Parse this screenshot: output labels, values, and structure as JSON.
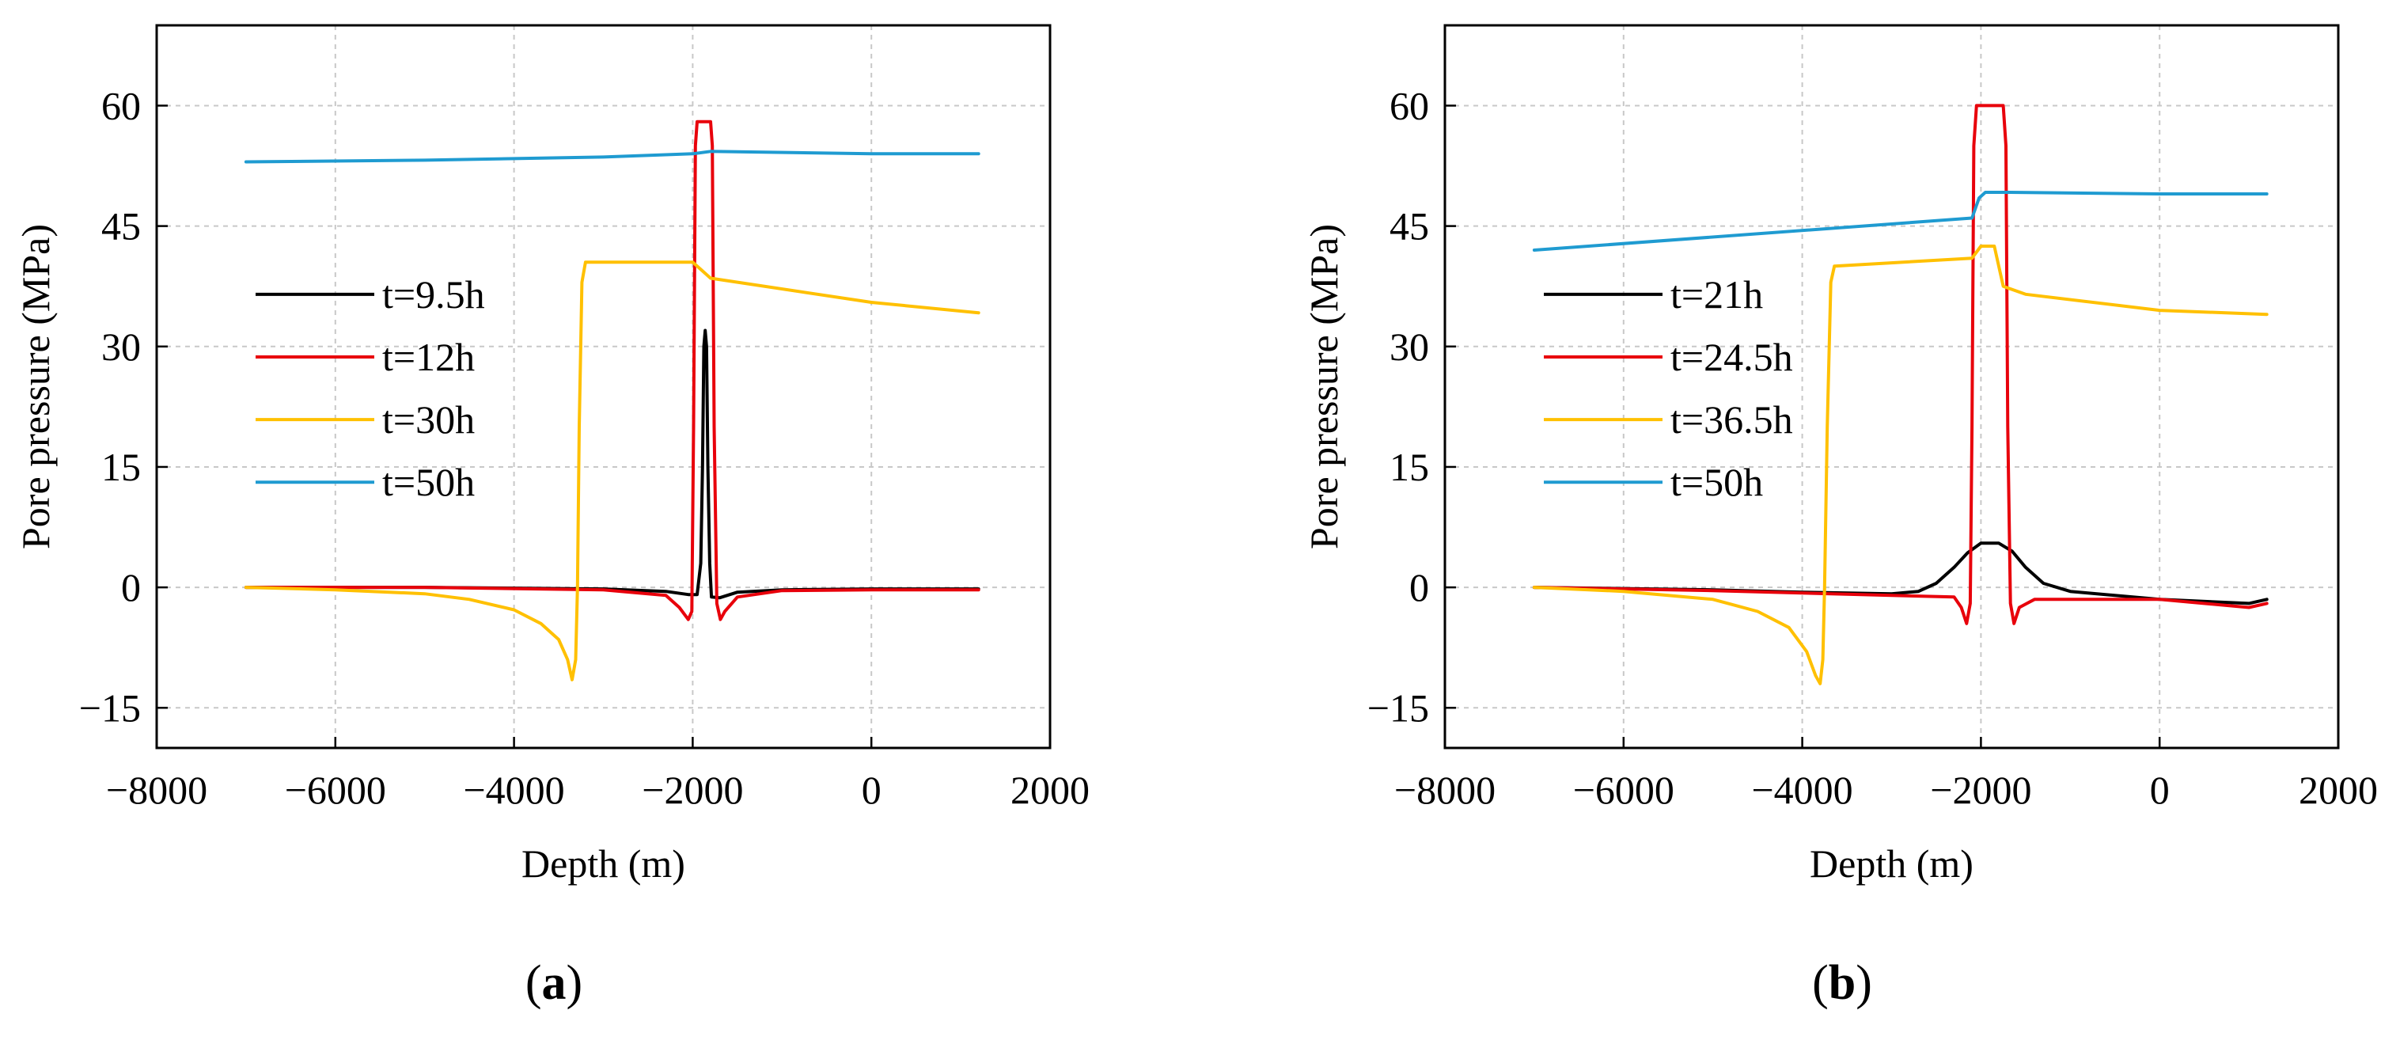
{
  "chart_data": [
    {
      "type": "line",
      "panel": "(a)",
      "panel_letter": "a",
      "xlabel": "Depth (m)",
      "ylabel": "Pore pressure (MPa)",
      "xlim": [
        -8000,
        2000
      ],
      "ylim": [
        -20,
        70
      ],
      "xticks": [
        -8000,
        -6000,
        -4000,
        -2000,
        0,
        2000
      ],
      "yticks": [
        -15,
        0,
        15,
        30,
        45,
        60
      ],
      "grid": true,
      "legend_position": "center-left",
      "series": [
        {
          "name": "t=9.5h",
          "color": "#000000",
          "points": [
            [
              -7000,
              0
            ],
            [
              -5000,
              0
            ],
            [
              -3000,
              -0.2
            ],
            [
              -2300,
              -0.5
            ],
            [
              -2050,
              -0.9
            ],
            [
              -1950,
              -0.9
            ],
            [
              -1910,
              3
            ],
            [
              -1890,
              15
            ],
            [
              -1875,
              30
            ],
            [
              -1860,
              32
            ],
            [
              -1845,
              30
            ],
            [
              -1830,
              15
            ],
            [
              -1810,
              3
            ],
            [
              -1790,
              -1.2
            ],
            [
              -1700,
              -1.3
            ],
            [
              -1500,
              -0.6
            ],
            [
              -1000,
              -0.3
            ],
            [
              0,
              -0.2
            ],
            [
              1200,
              -0.2
            ]
          ]
        },
        {
          "name": "t=12h",
          "color": "#e8000b",
          "points": [
            [
              -7000,
              0
            ],
            [
              -5000,
              0
            ],
            [
              -3000,
              -0.3
            ],
            [
              -2300,
              -1
            ],
            [
              -2150,
              -2.5
            ],
            [
              -2050,
              -4
            ],
            [
              -2010,
              -3
            ],
            [
              -1990,
              20
            ],
            [
              -1970,
              55
            ],
            [
              -1950,
              58
            ],
            [
              -1800,
              58
            ],
            [
              -1780,
              55
            ],
            [
              -1760,
              20
            ],
            [
              -1730,
              -2
            ],
            [
              -1690,
              -4
            ],
            [
              -1640,
              -3
            ],
            [
              -1500,
              -1.2
            ],
            [
              -1000,
              -0.4
            ],
            [
              0,
              -0.3
            ],
            [
              1200,
              -0.3
            ]
          ]
        },
        {
          "name": "t=30h",
          "color": "#ffc000",
          "points": [
            [
              -7000,
              0
            ],
            [
              -6000,
              -0.3
            ],
            [
              -5000,
              -0.8
            ],
            [
              -4500,
              -1.5
            ],
            [
              -4000,
              -2.8
            ],
            [
              -3700,
              -4.5
            ],
            [
              -3500,
              -6.5
            ],
            [
              -3400,
              -9
            ],
            [
              -3350,
              -11.5
            ],
            [
              -3310,
              -9
            ],
            [
              -3290,
              0
            ],
            [
              -3270,
              20
            ],
            [
              -3240,
              38
            ],
            [
              -3200,
              40.5
            ],
            [
              -2000,
              40.5
            ],
            [
              -1800,
              38.5
            ],
            [
              0,
              35.5
            ],
            [
              1200,
              34.2
            ]
          ]
        },
        {
          "name": "t=50h",
          "color": "#1f9bd1",
          "points": [
            [
              -7000,
              53
            ],
            [
              -5000,
              53.2
            ],
            [
              -3000,
              53.6
            ],
            [
              -2000,
              54
            ],
            [
              -1800,
              54.3
            ],
            [
              0,
              54
            ],
            [
              1200,
              54
            ]
          ]
        }
      ]
    },
    {
      "type": "line",
      "panel": "(b)",
      "panel_letter": "b",
      "xlabel": "Depth (m)",
      "ylabel": "Pore pressure (MPa)",
      "xlim": [
        -8000,
        2000
      ],
      "ylim": [
        -20,
        70
      ],
      "xticks": [
        -8000,
        -6000,
        -4000,
        -2000,
        0,
        2000
      ],
      "yticks": [
        -15,
        0,
        15,
        30,
        45,
        60
      ],
      "grid": true,
      "legend_position": "center-left",
      "series": [
        {
          "name": "t=21h",
          "color": "#000000",
          "points": [
            [
              -7000,
              0
            ],
            [
              -5000,
              -0.3
            ],
            [
              -4000,
              -0.6
            ],
            [
              -3000,
              -0.8
            ],
            [
              -2700,
              -0.5
            ],
            [
              -2500,
              0.5
            ],
            [
              -2300,
              2.5
            ],
            [
              -2150,
              4.3
            ],
            [
              -2000,
              5.5
            ],
            [
              -1800,
              5.5
            ],
            [
              -1650,
              4.5
            ],
            [
              -1500,
              2.5
            ],
            [
              -1300,
              0.5
            ],
            [
              -1000,
              -0.5
            ],
            [
              0,
              -1.5
            ],
            [
              1000,
              -2
            ],
            [
              1200,
              -1.5
            ]
          ]
        },
        {
          "name": "t=24.5h",
          "color": "#e8000b",
          "points": [
            [
              -7000,
              0
            ],
            [
              -5000,
              -0.4
            ],
            [
              -3000,
              -1
            ],
            [
              -2300,
              -1.2
            ],
            [
              -2220,
              -2.5
            ],
            [
              -2160,
              -4.5
            ],
            [
              -2120,
              -2
            ],
            [
              -2100,
              20
            ],
            [
              -2080,
              55
            ],
            [
              -2050,
              60
            ],
            [
              -1750,
              60
            ],
            [
              -1720,
              55
            ],
            [
              -1700,
              20
            ],
            [
              -1670,
              -2
            ],
            [
              -1630,
              -4.5
            ],
            [
              -1570,
              -2.5
            ],
            [
              -1400,
              -1.5
            ],
            [
              0,
              -1.5
            ],
            [
              1000,
              -2.5
            ],
            [
              1200,
              -2
            ]
          ]
        },
        {
          "name": "t=36.5h",
          "color": "#ffc000",
          "points": [
            [
              -7000,
              0
            ],
            [
              -6000,
              -0.5
            ],
            [
              -5000,
              -1.5
            ],
            [
              -4500,
              -3
            ],
            [
              -4150,
              -5
            ],
            [
              -3950,
              -8
            ],
            [
              -3850,
              -11
            ],
            [
              -3800,
              -12
            ],
            [
              -3770,
              -9
            ],
            [
              -3750,
              0
            ],
            [
              -3720,
              20
            ],
            [
              -3680,
              38
            ],
            [
              -3640,
              40
            ],
            [
              -2100,
              41
            ],
            [
              -2000,
              42.5
            ],
            [
              -1850,
              42.5
            ],
            [
              -1750,
              37.5
            ],
            [
              -1500,
              36.5
            ],
            [
              0,
              34.5
            ],
            [
              1200,
              34
            ]
          ]
        },
        {
          "name": "t=50h",
          "color": "#1f9bd1",
          "points": [
            [
              -7000,
              42
            ],
            [
              -2100,
              46
            ],
            [
              -2020,
              48.5
            ],
            [
              -1950,
              49.2
            ],
            [
              -1700,
              49.2
            ],
            [
              0,
              49
            ],
            [
              1200,
              49
            ]
          ]
        }
      ]
    }
  ]
}
